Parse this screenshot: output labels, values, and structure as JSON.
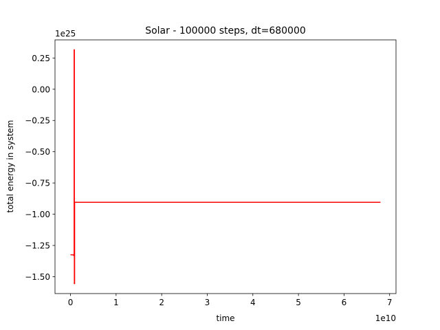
{
  "chart_data": {
    "type": "line",
    "title": "Solar - 100000 steps, dt=680000",
    "xlabel": "time",
    "ylabel": "total energy in system",
    "x_offset_label": "1e10",
    "y_offset_label": "1e25",
    "x_scale_exp": 10,
    "y_scale_exp": 25,
    "xlim": [
      -0.34,
      7.14
    ],
    "ylim": [
      -1.635,
      0.395
    ],
    "x_ticks": [
      0,
      1,
      2,
      3,
      4,
      5,
      6,
      7
    ],
    "x_tick_labels": [
      "0",
      "1",
      "2",
      "3",
      "4",
      "5",
      "6",
      "7"
    ],
    "y_ticks": [
      0.25,
      0.0,
      -0.25,
      -0.5,
      -0.75,
      -1.0,
      -1.25,
      -1.5
    ],
    "y_tick_labels": [
      "0.25",
      "0.00",
      "−0.25",
      "−0.50",
      "−0.75",
      "−1.00",
      "−1.25",
      "−1.50"
    ],
    "grid": false,
    "series": [
      {
        "color": "#ff0000",
        "points": [
          [
            0.0,
            -1.325
          ],
          [
            0.07,
            -1.325
          ],
          [
            0.07,
            -1.33
          ],
          [
            0.08,
            -1.33
          ],
          [
            0.08,
            0.315
          ],
          [
            0.085,
            0.315
          ],
          [
            0.085,
            -1.555
          ],
          [
            0.09,
            -1.555
          ],
          [
            0.09,
            -0.905
          ],
          [
            6.8,
            -0.905
          ]
        ]
      }
    ]
  }
}
